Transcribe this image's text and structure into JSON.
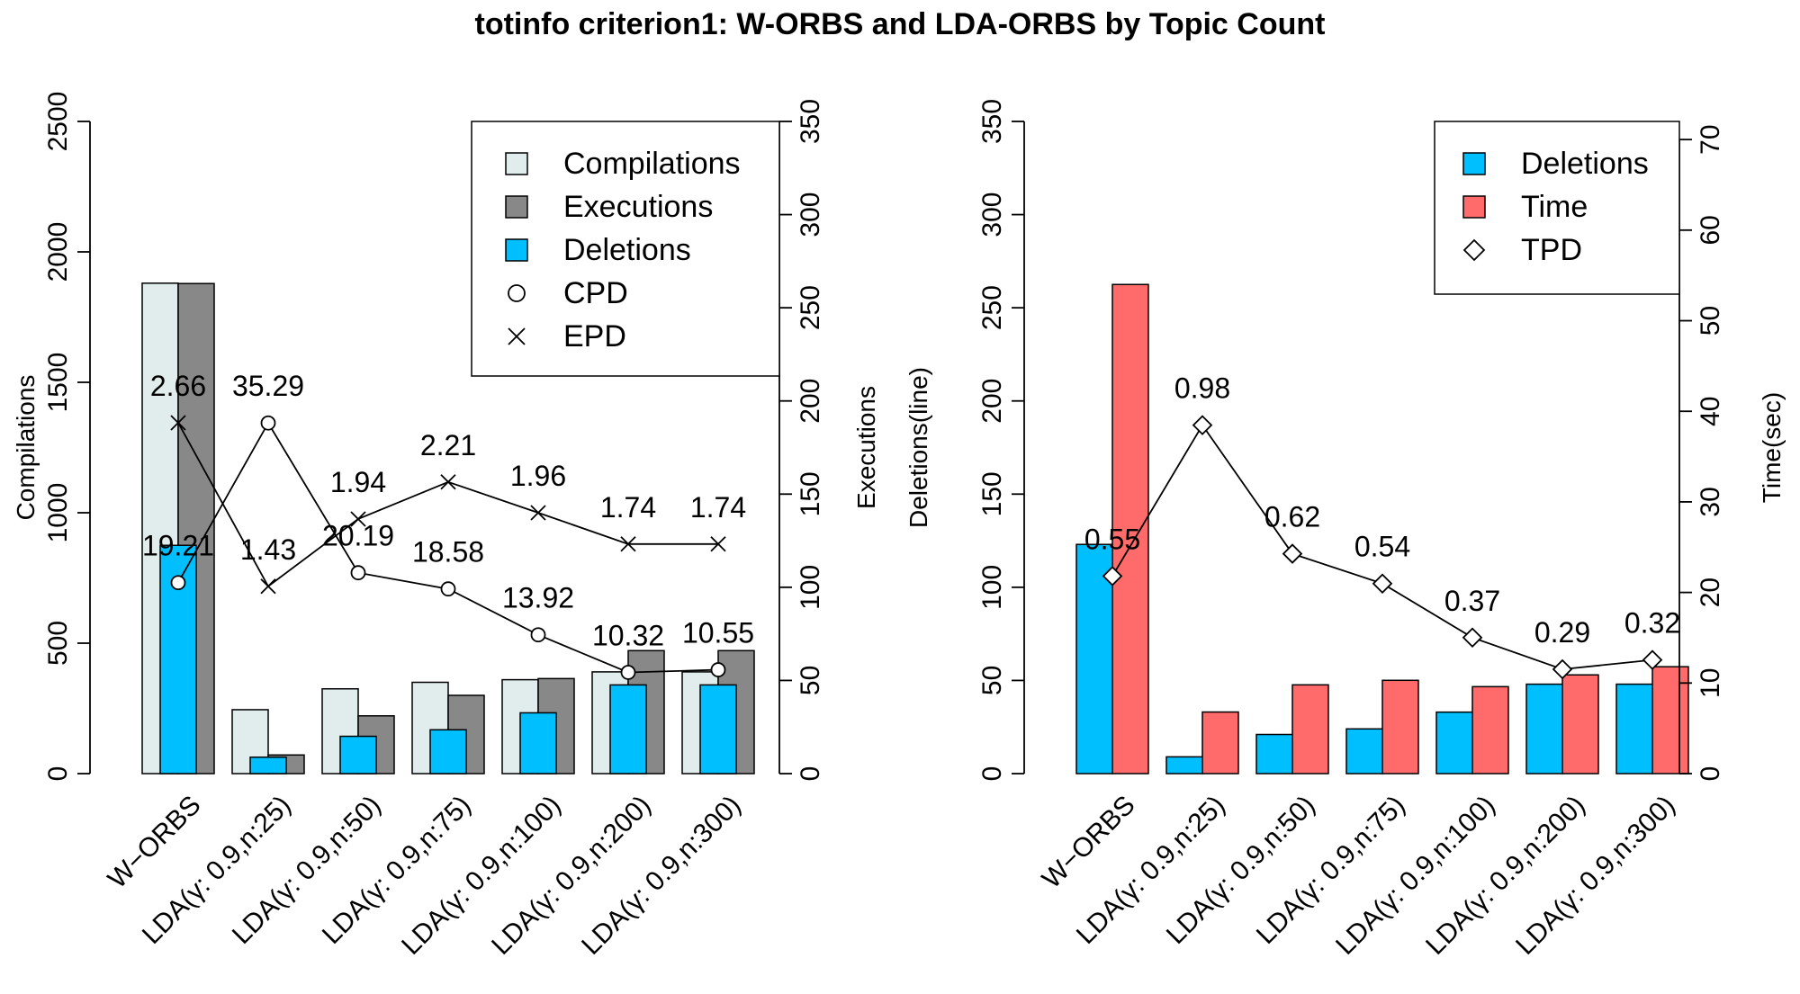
{
  "title": "totinfo criterion1: W-ORBS and LDA-ORBS by Topic Count",
  "categories": [
    "W−ORBS",
    "LDA(γ: 0.9,n:25)",
    "LDA(γ: 0.9,n:50)",
    "LDA(γ: 0.9,n:75)",
    "LDA(γ: 0.9,n:100)",
    "LDA(γ: 0.9,n:200)",
    "LDA(γ: 0.9,n:300)"
  ],
  "chart_data": [
    {
      "type": "bar",
      "panel": "left",
      "categories": [
        "W−ORBS",
        "LDA(γ: 0.9,n:25)",
        "LDA(γ: 0.9,n:50)",
        "LDA(γ: 0.9,n:75)",
        "LDA(γ: 0.9,n:100)",
        "LDA(γ: 0.9,n:200)",
        "LDA(γ: 0.9,n:300)"
      ],
      "ylabel": "Compilations",
      "ylim": [
        0,
        2500
      ],
      "yticks": [
        0,
        500,
        1000,
        1500,
        2000,
        2500
      ],
      "y2label": "Executions",
      "y2lim": [
        0,
        350
      ],
      "y2ticks": [
        0,
        50,
        100,
        150,
        200,
        250,
        300,
        350
      ],
      "series": [
        {
          "name": "Compilations",
          "axis": "left",
          "kind": "bar",
          "color": "#e1ecec",
          "values": [
            1880,
            245,
            325,
            350,
            360,
            390,
            390
          ]
        },
        {
          "name": "Executions",
          "axis": "right",
          "kind": "bar",
          "color": "#888888",
          "values": [
            263,
            10,
            31,
            42,
            51,
            66,
            66
          ]
        },
        {
          "name": "Deletions",
          "axis": "left",
          "kind": "bar",
          "color": "#00bfff",
          "values": [
            875,
            63,
            143,
            168,
            233,
            340,
            340
          ]
        },
        {
          "name": "CPD",
          "axis": "left",
          "kind": "line-circle",
          "values": [
            732,
            1344,
            770,
            708,
            532,
            388,
            398
          ],
          "labels": [
            "19.21",
            "35.29",
            "20.19",
            "18.58",
            "13.92",
            "10.32",
            "10.55"
          ]
        },
        {
          "name": "EPD",
          "axis": "left",
          "kind": "line-cross",
          "values": [
            1345,
            718,
            976,
            1118,
            1000,
            880,
            880
          ],
          "labels": [
            "2.66",
            "1.43",
            "1.94",
            "2.21",
            "1.96",
            "1.74",
            "1.74"
          ]
        }
      ],
      "legend": {
        "position": "top-right",
        "items": [
          "Compilations",
          "Executions",
          "Deletions",
          "CPD",
          "EPD"
        ]
      }
    },
    {
      "type": "bar",
      "panel": "right",
      "categories": [
        "W−ORBS",
        "LDA(γ: 0.9,n:25)",
        "LDA(γ: 0.9,n:50)",
        "LDA(γ: 0.9,n:75)",
        "LDA(γ: 0.9,n:100)",
        "LDA(γ: 0.9,n:200)",
        "LDA(γ: 0.9,n:300)"
      ],
      "ylabel": "Deletions(line)",
      "ylim": [
        0,
        350
      ],
      "yticks": [
        0,
        50,
        100,
        150,
        200,
        250,
        300,
        350
      ],
      "y2label": "Time(sec)",
      "y2lim": [
        0,
        72
      ],
      "y2ticks": [
        0,
        10,
        20,
        30,
        40,
        50,
        60,
        70
      ],
      "series": [
        {
          "name": "Deletions",
          "axis": "left",
          "kind": "bar",
          "color": "#00bfff",
          "values": [
            123,
            9,
            21,
            24,
            33,
            48,
            48
          ]
        },
        {
          "name": "Time",
          "axis": "right",
          "kind": "bar",
          "color": "#ff6a6a",
          "values": [
            54,
            6.8,
            9.8,
            10.3,
            9.6,
            10.9,
            11.8
          ]
        },
        {
          "name": "TPD",
          "axis": "left",
          "kind": "line-diamond",
          "values": [
            106,
            187,
            118,
            102,
            73,
            56,
            61
          ],
          "labels": [
            "0.55",
            "0.98",
            "0.62",
            "0.54",
            "0.37",
            "0.29",
            "0.32"
          ]
        }
      ],
      "legend": {
        "position": "top-right",
        "items": [
          "Deletions",
          "Time",
          "TPD"
        ]
      }
    }
  ]
}
